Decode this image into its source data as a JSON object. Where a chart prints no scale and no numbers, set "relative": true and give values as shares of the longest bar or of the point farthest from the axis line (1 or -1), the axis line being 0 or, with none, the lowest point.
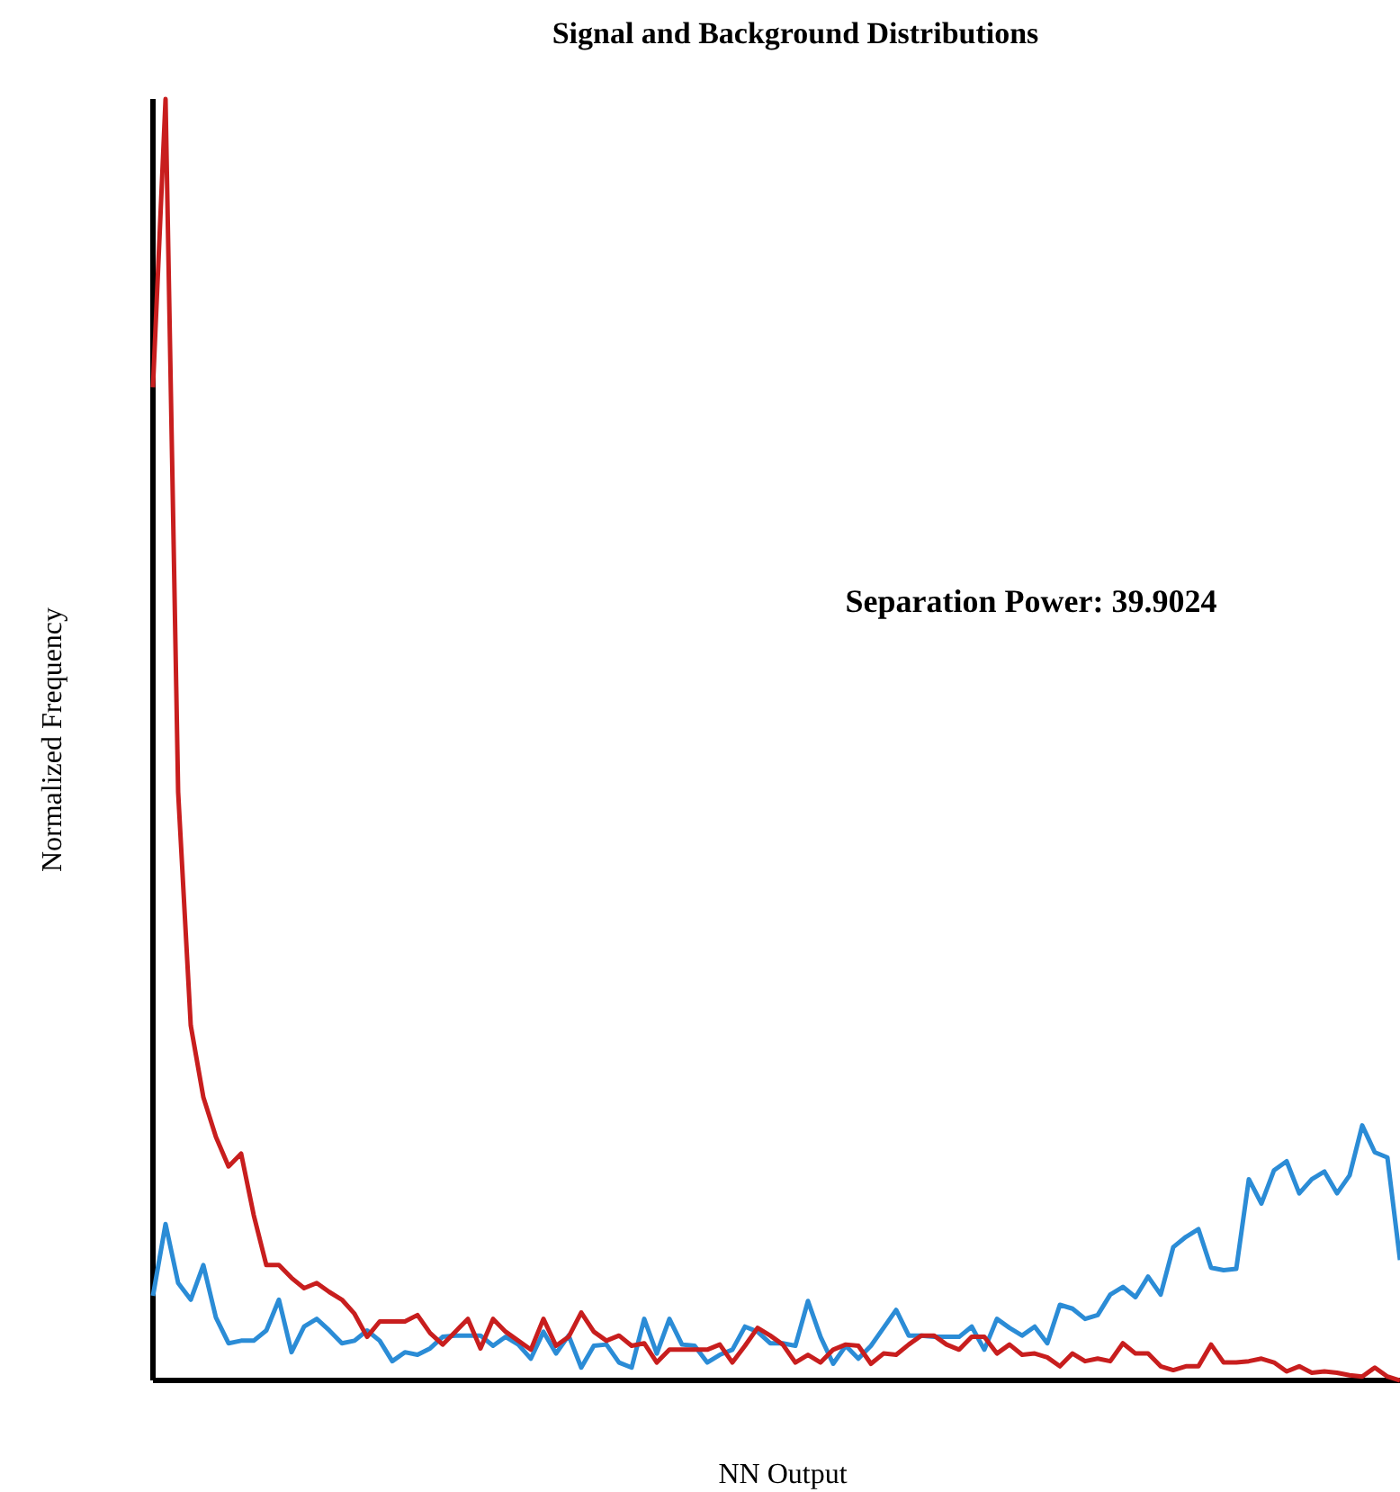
{
  "chart_data": {
    "type": "line",
    "title": "Signal and Background Distributions",
    "xlabel": "NN Output",
    "ylabel": "Normalized Frequency",
    "relative": true,
    "legend": false,
    "marker": "none",
    "line_style": "solid",
    "annotations": [
      "Separation Power: 39.9024"
    ],
    "categories": [
      null,
      null,
      null,
      null,
      null,
      null,
      null,
      null,
      null,
      null,
      null,
      null,
      null,
      null,
      null,
      null,
      null,
      null,
      null,
      null,
      null,
      null,
      null,
      null,
      null,
      null,
      null,
      null,
      null,
      null,
      null,
      null,
      null,
      null,
      null,
      null,
      null,
      null,
      null,
      null,
      null,
      null,
      null,
      null,
      null,
      null,
      null,
      null,
      null,
      null,
      null,
      null,
      null,
      null,
      null,
      null,
      null,
      null,
      null,
      null,
      null,
      null,
      null,
      null,
      null,
      null,
      null,
      null,
      null,
      null,
      null,
      null,
      null,
      null,
      null,
      null,
      null,
      null,
      null,
      null,
      null,
      null,
      null,
      null,
      null,
      null,
      null,
      null,
      null,
      null,
      null,
      null,
      null,
      null,
      null,
      null,
      null,
      null,
      null,
      null
    ],
    "series": [
      {
        "color": "#2b8cd6",
        "values": [
          0.066,
          0.122,
          0.076,
          0.063,
          0.09,
          0.049,
          0.029,
          0.031,
          0.031,
          0.039,
          0.063,
          0.022,
          0.042,
          0.048,
          0.039,
          0.029,
          0.031,
          0.039,
          0.031,
          0.015,
          0.022,
          0.02,
          0.025,
          0.034,
          0.035,
          0.035,
          0.035,
          0.027,
          0.034,
          0.028,
          0.017,
          0.038,
          0.021,
          0.035,
          0.01,
          0.027,
          0.028,
          0.014,
          0.01,
          0.048,
          0.021,
          0.048,
          0.028,
          0.027,
          0.014,
          0.02,
          0.024,
          0.042,
          0.038,
          0.029,
          0.029,
          0.027,
          0.062,
          0.034,
          0.013,
          0.027,
          0.017,
          0.027,
          0.041,
          0.055,
          0.035,
          0.035,
          0.034,
          0.034,
          0.034,
          0.042,
          0.024,
          0.048,
          0.041,
          0.035,
          0.042,
          0.029,
          0.059,
          0.056,
          0.048,
          0.051,
          0.067,
          0.073,
          0.065,
          0.081,
          0.067,
          0.104,
          0.112,
          0.118,
          0.088,
          0.086,
          0.087,
          0.157,
          0.138,
          0.164,
          0.171,
          0.146,
          0.157,
          0.163,
          0.146,
          0.16,
          0.199,
          0.178,
          0.174,
          0.094
        ]
      },
      {
        "color": "#c81e1e",
        "values": [
          0.775,
          1,
          0.459,
          0.277,
          0.221,
          0.19,
          0.167,
          0.177,
          0.129,
          0.09,
          0.09,
          0.08,
          0.072,
          0.076,
          0.069,
          0.063,
          0.052,
          0.034,
          0.046,
          0.046,
          0.046,
          0.051,
          0.037,
          0.028,
          0.038,
          0.048,
          0.025,
          0.048,
          0.038,
          0.031,
          0.024,
          0.048,
          0.027,
          0.034,
          0.053,
          0.038,
          0.031,
          0.035,
          0.027,
          0.029,
          0.014,
          0.024,
          0.024,
          0.024,
          0.024,
          0.028,
          0.014,
          0.027,
          0.041,
          0.035,
          0.028,
          0.014,
          0.02,
          0.014,
          0.024,
          0.028,
          0.027,
          0.013,
          0.021,
          0.02,
          0.028,
          0.035,
          0.035,
          0.028,
          0.024,
          0.034,
          0.034,
          0.021,
          0.028,
          0.02,
          0.021,
          0.018,
          0.011,
          0.021,
          0.015,
          0.017,
          0.015,
          0.029,
          0.021,
          0.021,
          0.011,
          0.008,
          0.011,
          0.011,
          0.028,
          0.014,
          0.014,
          0.015,
          0.017,
          0.014,
          0.007,
          0.011,
          0.006,
          0.007,
          0.006,
          0.004,
          0.003,
          0.01,
          0.003,
          0
        ]
      }
    ]
  }
}
